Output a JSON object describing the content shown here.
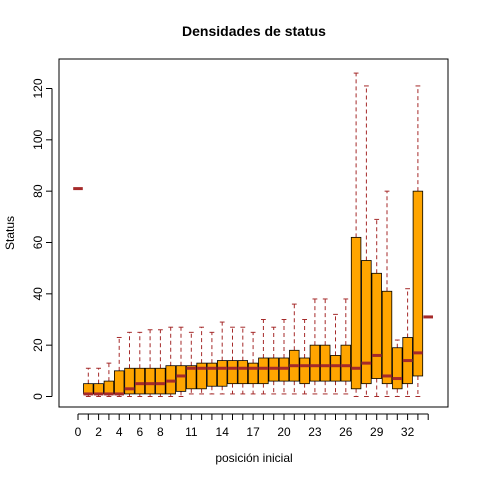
{
  "chart_data": {
    "type": "boxplot",
    "title": "Densidades de status",
    "xlabel": "posición inicial",
    "ylabel": "Status",
    "ylim": [
      -5,
      130
    ],
    "yticks": [
      0,
      20,
      40,
      60,
      80,
      100,
      120
    ],
    "x_tick_labels": [
      "0",
      "2",
      "4",
      "6",
      "8",
      "11",
      "14",
      "17",
      "20",
      "23",
      "26",
      "29",
      "32"
    ],
    "x_tick_indices": [
      0,
      2,
      4,
      6,
      8,
      11,
      14,
      17,
      20,
      23,
      26,
      29,
      32
    ],
    "colors": {
      "box_fill": "#FFA500",
      "median": "#A52A2A",
      "whisker": "#A52A2A",
      "border": "#000000"
    },
    "boxes": [
      {
        "position": 0,
        "min": 81,
        "q1": 81,
        "median": 81,
        "q3": 81,
        "max": 81
      },
      {
        "position": 1,
        "min": 0,
        "q1": 1,
        "median": 1,
        "q3": 5,
        "max": 11
      },
      {
        "position": 2,
        "min": 0,
        "q1": 1,
        "median": 1,
        "q3": 5,
        "max": 11
      },
      {
        "position": 3,
        "min": 0,
        "q1": 1,
        "median": 1,
        "q3": 6,
        "max": 13
      },
      {
        "position": 4,
        "min": 0,
        "q1": 1,
        "median": 1,
        "q3": 10,
        "max": 23
      },
      {
        "position": 5,
        "min": 0,
        "q1": 1,
        "median": 3,
        "q3": 11,
        "max": 25
      },
      {
        "position": 6,
        "min": 0,
        "q1": 1,
        "median": 5,
        "q3": 11,
        "max": 25
      },
      {
        "position": 7,
        "min": 0,
        "q1": 1,
        "median": 5,
        "q3": 11,
        "max": 26
      },
      {
        "position": 8,
        "min": 0,
        "q1": 1,
        "median": 5,
        "q3": 11,
        "max": 26
      },
      {
        "position": 9,
        "min": 0,
        "q1": 1,
        "median": 6,
        "q3": 12,
        "max": 27
      },
      {
        "position": 10,
        "min": 0,
        "q1": 2,
        "median": 8,
        "q3": 12,
        "max": 27
      },
      {
        "position": 11,
        "min": 1,
        "q1": 3,
        "median": 11,
        "q3": 12,
        "max": 25
      },
      {
        "position": 12,
        "min": 1,
        "q1": 3,
        "median": 11,
        "q3": 13,
        "max": 27
      },
      {
        "position": 13,
        "min": 1,
        "q1": 4,
        "median": 11,
        "q3": 13,
        "max": 25
      },
      {
        "position": 14,
        "min": 1,
        "q1": 4,
        "median": 11,
        "q3": 14,
        "max": 29
      },
      {
        "position": 15,
        "min": 1,
        "q1": 5,
        "median": 11,
        "q3": 14,
        "max": 27
      },
      {
        "position": 16,
        "min": 1,
        "q1": 5,
        "median": 11,
        "q3": 14,
        "max": 27
      },
      {
        "position": 17,
        "min": 1,
        "q1": 5,
        "median": 11,
        "q3": 13,
        "max": 25
      },
      {
        "position": 18,
        "min": 1,
        "q1": 5,
        "median": 11,
        "q3": 15,
        "max": 30
      },
      {
        "position": 19,
        "min": 1,
        "q1": 6,
        "median": 11,
        "q3": 15,
        "max": 27
      },
      {
        "position": 20,
        "min": 1,
        "q1": 6,
        "median": 11,
        "q3": 15,
        "max": 30
      },
      {
        "position": 21,
        "min": 1,
        "q1": 6,
        "median": 12,
        "q3": 18,
        "max": 36
      },
      {
        "position": 22,
        "min": 1,
        "q1": 5,
        "median": 12,
        "q3": 15,
        "max": 30
      },
      {
        "position": 23,
        "min": 1,
        "q1": 6,
        "median": 12,
        "q3": 20,
        "max": 38
      },
      {
        "position": 24,
        "min": 1,
        "q1": 6,
        "median": 12,
        "q3": 20,
        "max": 38
      },
      {
        "position": 25,
        "min": 1,
        "q1": 6,
        "median": 12,
        "q3": 16,
        "max": 32
      },
      {
        "position": 26,
        "min": 1,
        "q1": 6,
        "median": 12,
        "q3": 20,
        "max": 38
      },
      {
        "position": 27,
        "min": 0,
        "q1": 3,
        "median": 11,
        "q3": 62,
        "max": 126
      },
      {
        "position": 28,
        "min": 0,
        "q1": 5,
        "median": 13,
        "q3": 53,
        "max": 121
      },
      {
        "position": 29,
        "min": 0,
        "q1": 7,
        "median": 16,
        "q3": 48,
        "max": 69
      },
      {
        "position": 30,
        "min": 0,
        "q1": 5,
        "median": 8,
        "q3": 41,
        "max": 80
      },
      {
        "position": 31,
        "min": 0,
        "q1": 3,
        "median": 7,
        "q3": 19,
        "max": 22
      },
      {
        "position": 32,
        "min": 0,
        "q1": 5,
        "median": 14,
        "q3": 23,
        "max": 42
      },
      {
        "position": 33,
        "min": 0,
        "q1": 8,
        "median": 17,
        "q3": 80,
        "max": 121
      },
      {
        "position": 34,
        "min": 31,
        "q1": 31,
        "median": 31,
        "q3": 31,
        "max": 31
      }
    ]
  }
}
